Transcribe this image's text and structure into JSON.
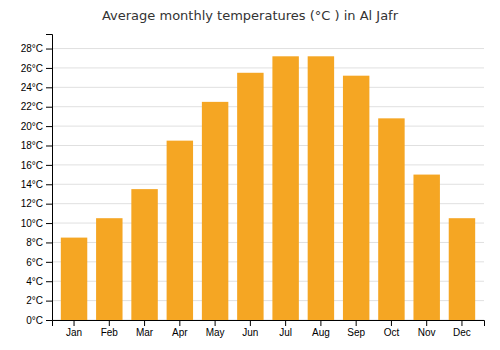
{
  "chart_data": {
    "type": "bar",
    "title": "Average monthly temperatures (°C ) in Al Jafr",
    "categories": [
      "Jan",
      "Feb",
      "Mar",
      "Apr",
      "May",
      "Jun",
      "Jul",
      "Aug",
      "Sep",
      "Oct",
      "Nov",
      "Dec"
    ],
    "values": [
      8.5,
      10.5,
      13.5,
      18.5,
      22.5,
      25.5,
      27.2,
      27.2,
      25.2,
      20.8,
      15.0,
      10.5
    ],
    "color": "#F5A623",
    "ylim": [
      0,
      29.5
    ],
    "yticks": [
      {
        "value": 0,
        "label": "0°C"
      },
      {
        "value": 2,
        "label": "2°C"
      },
      {
        "value": 4,
        "label": "4°C"
      },
      {
        "value": 6,
        "label": "6°C"
      },
      {
        "value": 8,
        "label": "8°C"
      },
      {
        "value": 10,
        "label": "10°C"
      },
      {
        "value": 12,
        "label": "12°C"
      },
      {
        "value": 14,
        "label": "14°C"
      },
      {
        "value": 16,
        "label": "16°C"
      },
      {
        "value": 18,
        "label": "18°C"
      },
      {
        "value": 20,
        "label": "20°C"
      },
      {
        "value": 22,
        "label": "22°C"
      },
      {
        "value": 24,
        "label": "24°C"
      },
      {
        "value": 26,
        "label": "26°C"
      },
      {
        "value": 28,
        "label": "28°C"
      }
    ],
    "grid": true
  }
}
